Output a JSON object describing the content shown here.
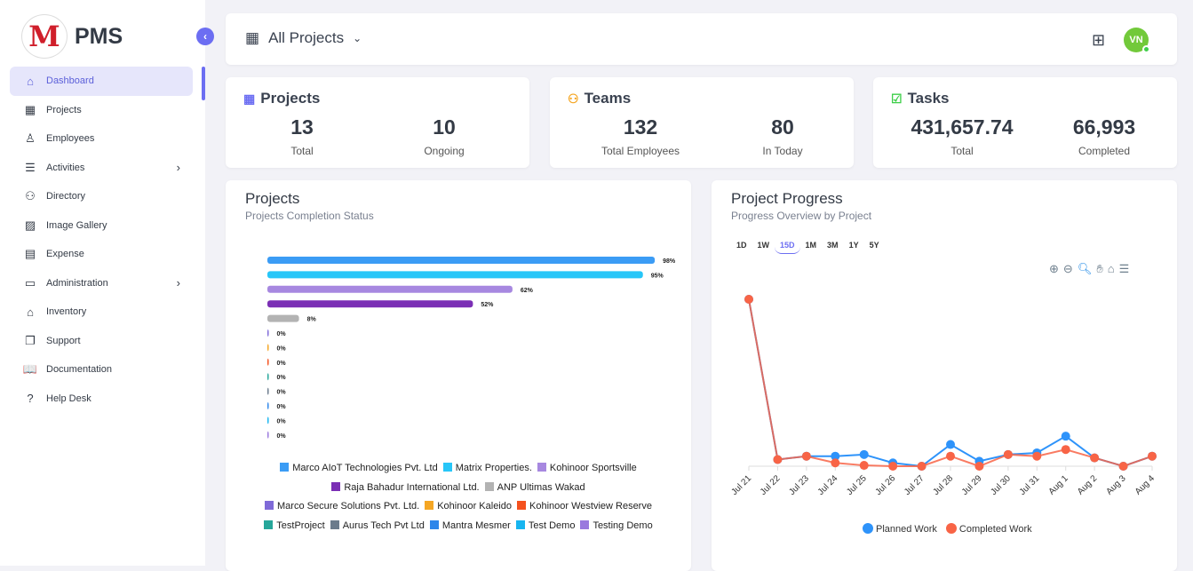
{
  "sidebar": {
    "brand": "PMS",
    "logo_letter": "M",
    "items": [
      {
        "label": "Dashboard",
        "icon": "home-icon",
        "glyph": "⌂",
        "active": true
      },
      {
        "label": "Projects",
        "icon": "building-icon",
        "glyph": "▦"
      },
      {
        "label": "Employees",
        "icon": "user-icon",
        "glyph": "♙"
      },
      {
        "label": "Activities",
        "icon": "list-icon",
        "glyph": "☰",
        "chevron": true
      },
      {
        "label": "Directory",
        "icon": "users-icon",
        "glyph": "⚇"
      },
      {
        "label": "Image Gallery",
        "icon": "image-icon",
        "glyph": "▨"
      },
      {
        "label": "Expense",
        "icon": "receipt-icon",
        "glyph": "▤"
      },
      {
        "label": "Administration",
        "icon": "archive-icon",
        "glyph": "▭",
        "chevron": true
      },
      {
        "label": "Inventory",
        "icon": "store-icon",
        "glyph": "⌂"
      },
      {
        "label": "Support",
        "icon": "copy-icon",
        "glyph": "❐"
      },
      {
        "label": "Documentation",
        "icon": "book-icon",
        "glyph": "📖"
      },
      {
        "label": "Help Desk",
        "icon": "question-icon",
        "glyph": "?"
      }
    ]
  },
  "header": {
    "title": "All Projects",
    "user_initials": "VN"
  },
  "stats": {
    "projects": {
      "title": "Projects",
      "a_value": "13",
      "a_label": "Total",
      "b_value": "10",
      "b_label": "Ongoing"
    },
    "teams": {
      "title": "Teams",
      "a_value": "132",
      "a_label": "Total Employees",
      "b_value": "80",
      "b_label": "In Today"
    },
    "tasks": {
      "title": "Tasks",
      "a_value": "431,657.74",
      "a_label": "Total",
      "b_value": "66,993",
      "b_label": "Completed"
    }
  },
  "projects_panel": {
    "title": "Projects",
    "subtitle": "Projects Completion Status"
  },
  "progress_panel": {
    "title": "Project Progress",
    "subtitle": "Progress Overview by Project",
    "ranges": [
      "1D",
      "1W",
      "15D",
      "1M",
      "3M",
      "1Y",
      "5Y"
    ],
    "selected_range": "15D"
  },
  "chart_data": [
    {
      "type": "bar",
      "orientation": "horizontal",
      "xlim": [
        0,
        100
      ],
      "value_suffix": "%",
      "categories": [
        "Marco AIoT Technologies Pvt. Ltd",
        "Matrix Properties.",
        "Kohinoor Sportsville",
        "Raja Bahadur International Ltd.",
        "ANP Ultimas Wakad",
        "Marco Secure Solutions Pvt. Ltd.",
        "Kohinoor Kaleido",
        "Kohinoor Westview Reserve",
        "TestProject",
        "Aurus Tech Pvt Ltd",
        "Mantra Mesmer",
        "Test Demo",
        "Testing Demo"
      ],
      "values": [
        98,
        95,
        62,
        52,
        8,
        0,
        0,
        0,
        0,
        0,
        0,
        0,
        0
      ],
      "colors": [
        "#3b9cf5",
        "#27c6f8",
        "#a788e0",
        "#7b2fb5",
        "#b3b3b3",
        "#7f6ad8",
        "#f5a623",
        "#f4511e",
        "#26a69a",
        "#6b7b8c",
        "#2d86ea",
        "#17b5f0",
        "#9a79de"
      ],
      "legend": "bottom"
    },
    {
      "type": "line",
      "categories": [
        "Jul 21",
        "Jul 22",
        "Jul 23",
        "Jul 24",
        "Jul 25",
        "Jul 26",
        "Jul 27",
        "Jul 28",
        "Jul 29",
        "Jul 30",
        "Jul 31",
        "Aug 1",
        "Aug 2",
        "Aug 3",
        "Aug 4"
      ],
      "series": [
        {
          "name": "Planned Work",
          "color": "#2e93fa",
          "values": [
            100,
            4,
            6,
            6,
            7,
            2,
            0,
            13,
            3,
            7,
            8,
            18,
            5,
            0,
            6
          ]
        },
        {
          "name": "Completed Work",
          "color": "#f86446",
          "values": [
            100,
            4,
            6,
            2,
            0.5,
            0,
            0,
            6,
            0,
            7,
            6,
            10,
            5,
            0,
            6
          ]
        }
      ],
      "y_axis_shown": false,
      "legend": "bottom"
    }
  ]
}
